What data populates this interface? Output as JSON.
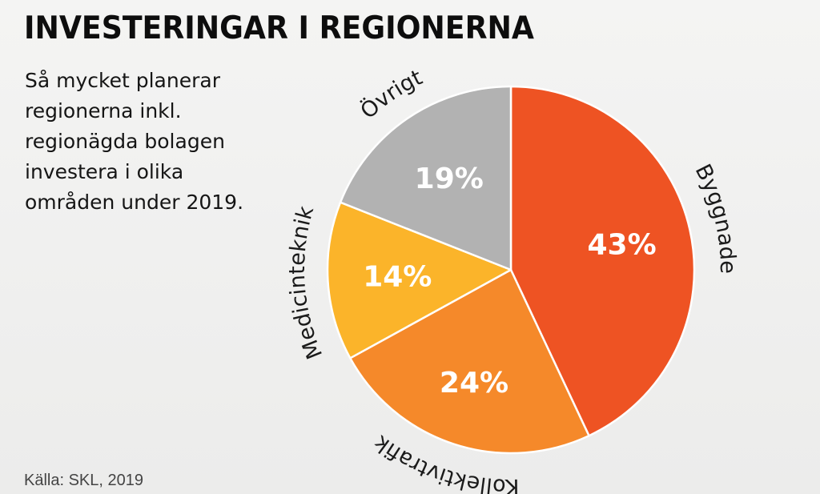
{
  "header": {
    "title": "INVESTERINGAR I REGIONERNA",
    "subtitle": "Så mycket planerar\nregionerna inkl.\nregionägda bolagen\ninvestera i olika\nområden under 2019."
  },
  "footer": {
    "source": "Källa: SKL, 2019"
  },
  "chart_data": {
    "type": "pie",
    "title": "INVESTERINGAR I REGIONERNA",
    "subtitle": "Så mycket planerar regionerna inkl. regionägda bolagen investera i olika områden under 2019.",
    "slices": [
      {
        "name": "Byggnader",
        "value": 43,
        "label": "43%",
        "color": "#ee5323"
      },
      {
        "name": "Kollektivtrafik",
        "value": 24,
        "label": "24%",
        "color": "#f5892a"
      },
      {
        "name": "Medicinteknik",
        "value": 14,
        "label": "14%",
        "color": "#fbb42a"
      },
      {
        "name": "Övrigt",
        "value": 19,
        "label": "19%",
        "color": "#b2b2b2"
      }
    ],
    "start": "12 o'clock",
    "direction": "clockwise"
  }
}
